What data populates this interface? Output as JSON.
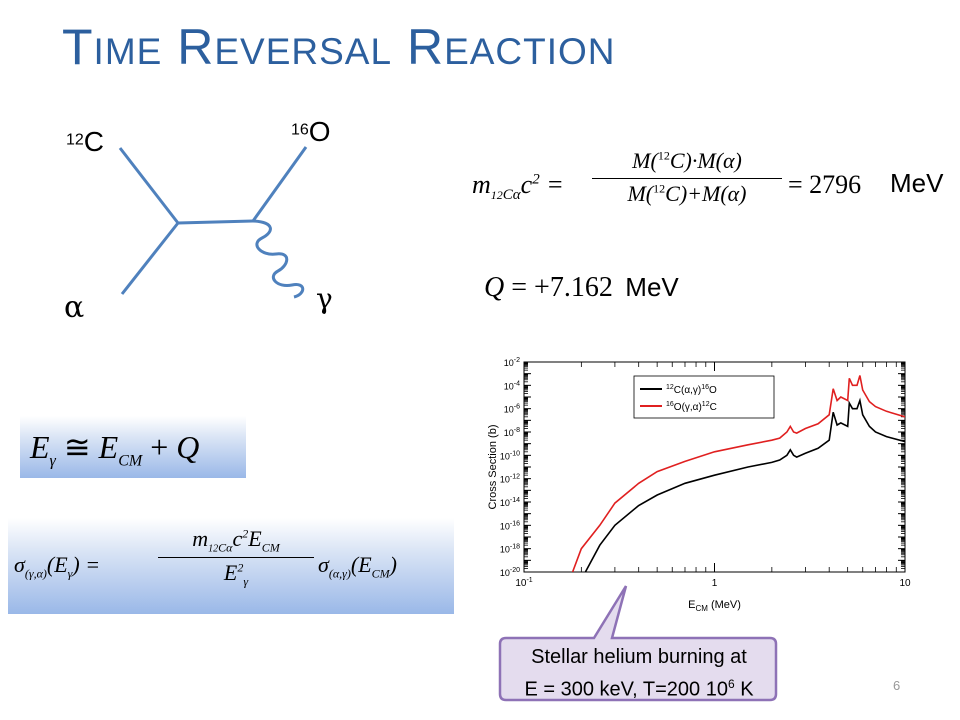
{
  "slide": {
    "title_parts": [
      {
        "cap": "T",
        "rest": "IME"
      },
      {
        "cap": "R",
        "rest": "EVERSAL"
      },
      {
        "cap": "R",
        "rest": "EACTION"
      }
    ],
    "page_number": "6"
  },
  "diagram": {
    "c12_mass": "12",
    "c12_symbol": "C",
    "o16_mass": "16",
    "o16_symbol": "O",
    "alpha_symbol": "α",
    "gamma_symbol": "γ",
    "line_color": "#4f81bd"
  },
  "equations": {
    "reduced_mass_unit": "MeV",
    "reduced_mass_value": "2796",
    "q_value": "+7.162",
    "q_unit": "MeV"
  },
  "chart": {
    "ylabel": "Cross Section (b)",
    "xlabel_base": "E",
    "xlabel_sub": "CM",
    "xlabel_unit": " (MeV)",
    "y_ticks": [
      "10-2",
      "10-4",
      "10-6",
      "10-8",
      "10-10",
      "10-12",
      "10-14",
      "10-16",
      "10-18",
      "10-20"
    ],
    "x_ticks": [
      "10-1",
      "1",
      "10"
    ],
    "legend": [
      {
        "pre": "12",
        "mid": "C(α,γ)",
        "sup2": "16",
        "post": "O",
        "color": "#000000"
      },
      {
        "pre": "16",
        "mid": "O(γ,α)",
        "sup2": "12",
        "post": "C",
        "color": "#e02020"
      }
    ]
  },
  "chart_data": {
    "type": "line",
    "xlabel": "E_CM (MeV)",
    "ylabel": "Cross Section (b)",
    "x_scale": "log",
    "y_scale": "log",
    "xlim": [
      0.1,
      10
    ],
    "ylim": [
      1e-20,
      0.01
    ],
    "series": [
      {
        "name": "12C(α,γ)16O",
        "color": "#000000",
        "x": [
          0.21,
          0.25,
          0.3,
          0.4,
          0.5,
          0.7,
          1.0,
          1.5,
          2.0,
          2.2,
          2.4,
          2.5,
          2.6,
          2.7,
          3.0,
          3.5,
          4.0,
          4.2,
          4.4,
          4.6,
          5.0,
          5.1,
          5.3,
          5.6,
          5.8,
          6.0,
          6.5,
          7.0,
          8.0,
          10.0
        ],
        "y": [
          1e-20,
          2e-18,
          1e-16,
          5e-15,
          4e-14,
          4e-13,
          2e-12,
          1e-11,
          2.5e-11,
          4e-11,
          1e-10,
          3e-10,
          1e-10,
          7e-11,
          1.5e-10,
          4e-10,
          2e-09,
          5e-07,
          4e-08,
          6e-08,
          3e-08,
          3e-06,
          1e-06,
          1e-06,
          5e-06,
          3e-07,
          3e-08,
          1e-08,
          4e-09,
          1.5e-09
        ]
      },
      {
        "name": "16O(γ,α)12C",
        "color": "#e02020",
        "x": [
          0.18,
          0.2,
          0.25,
          0.3,
          0.4,
          0.5,
          0.7,
          1.0,
          1.5,
          2.0,
          2.2,
          2.4,
          2.5,
          2.6,
          2.7,
          3.0,
          3.5,
          4.0,
          4.2,
          4.4,
          4.6,
          5.0,
          5.1,
          5.3,
          5.6,
          5.8,
          6.0,
          6.5,
          7.0,
          8.0,
          10.0
        ],
        "y": [
          1e-20,
          1e-18,
          1e-16,
          8e-15,
          4e-13,
          4e-12,
          3e-11,
          2e-10,
          8e-10,
          2e-09,
          3e-09,
          1e-08,
          3e-08,
          1e-08,
          8e-09,
          2e-08,
          5e-08,
          3e-07,
          5e-05,
          5e-06,
          1e-05,
          5e-06,
          0.0004,
          0.0001,
          0.0001,
          0.0007,
          4e-05,
          4e-06,
          1.5e-06,
          6e-07,
          2e-07
        ]
      }
    ]
  },
  "callout": {
    "line1": "Stellar helium burning at",
    "line2_pre": "E = 300 keV, T=200 10",
    "line2_sup": "6",
    "line2_post": " K"
  }
}
